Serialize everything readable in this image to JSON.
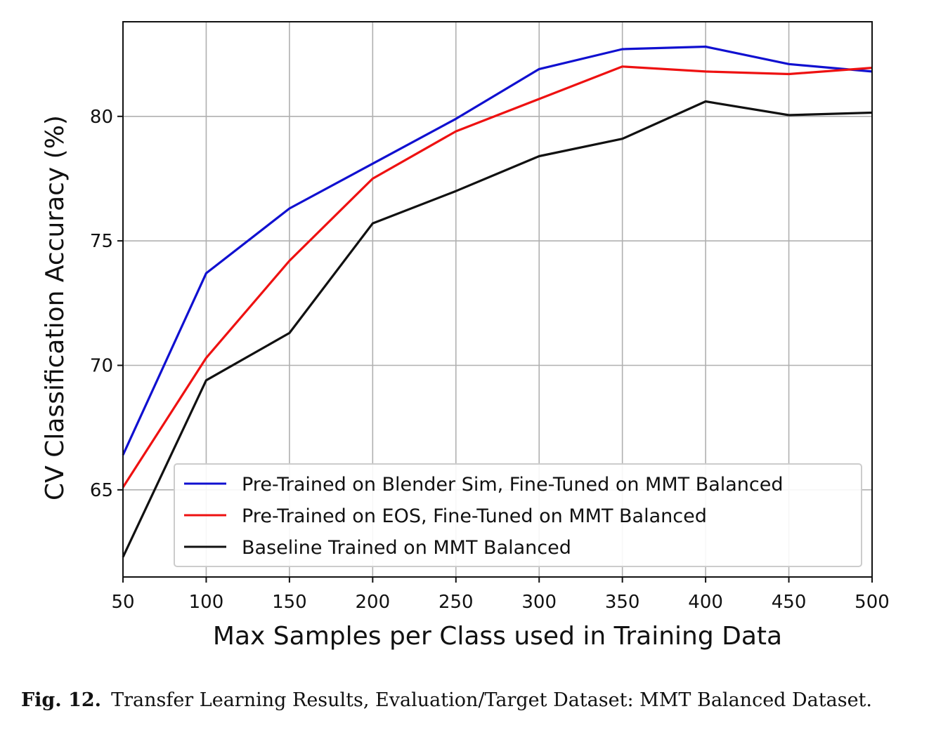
{
  "chart_data": {
    "type": "line",
    "title": "",
    "xlabel": "Max Samples per Class used in Training Data",
    "ylabel": "CV Classification Accuracy (%)",
    "xlim": [
      50,
      500
    ],
    "ylim": [
      61.5,
      83.8
    ],
    "x_ticks": [
      50,
      100,
      150,
      200,
      250,
      300,
      350,
      400,
      450,
      500
    ],
    "y_ticks": [
      65,
      70,
      75,
      80
    ],
    "grid": true,
    "legend_position": "lower-right",
    "x": [
      50,
      100,
      150,
      200,
      250,
      300,
      350,
      400,
      450,
      500
    ],
    "series": [
      {
        "name": "Pre-Trained on Blender Sim, Fine-Tuned on MMT Balanced",
        "color": "#1010d0",
        "values": [
          66.4,
          73.7,
          76.3,
          78.1,
          79.9,
          81.9,
          82.7,
          82.8,
          82.1,
          81.8
        ]
      },
      {
        "name": "Pre-Trained on EOS, Fine-Tuned on MMT Balanced",
        "color": "#ee1111",
        "values": [
          65.1,
          70.3,
          74.2,
          77.5,
          79.4,
          80.7,
          82.0,
          81.8,
          81.7,
          81.95
        ]
      },
      {
        "name": "Baseline Trained on MMT Balanced",
        "color": "#111111",
        "values": [
          62.3,
          69.4,
          71.3,
          75.7,
          77.0,
          78.4,
          79.1,
          80.6,
          80.05,
          80.15
        ]
      }
    ]
  },
  "caption": {
    "label": "Fig. 12.",
    "text": "Transfer Learning Results, Evaluation/Target Dataset: MMT Balanced Dataset."
  }
}
